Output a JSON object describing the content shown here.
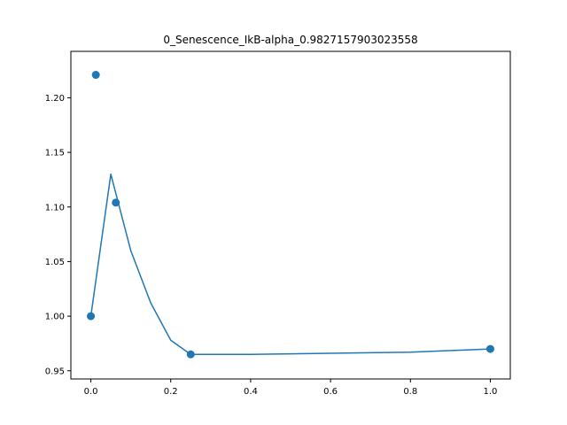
{
  "chart_data": {
    "type": "line",
    "title": "0_Senescence_IkB-alpha_0.9827157903023558",
    "xlabel": "",
    "ylabel": "",
    "xlim": [
      -0.05,
      1.05
    ],
    "ylim": [
      0.9425,
      1.2425
    ],
    "xticks": [
      0.0,
      0.2,
      0.4,
      0.6,
      0.8,
      1.0
    ],
    "xtick_labels": [
      "0.0",
      "0.2",
      "0.4",
      "0.6",
      "0.8",
      "1.0"
    ],
    "yticks": [
      0.95,
      1.0,
      1.05,
      1.1,
      1.15,
      1.2
    ],
    "ytick_labels": [
      "0.95",
      "1.00",
      "1.05",
      "1.10",
      "1.15",
      "1.20"
    ],
    "grid": false,
    "color": "#1f77b4",
    "series": [
      {
        "kind": "scatter",
        "x": [
          0.0,
          0.0125,
          0.0625,
          0.25,
          1.0
        ],
        "y": [
          1.0,
          1.221,
          1.104,
          0.965,
          0.97
        ]
      },
      {
        "kind": "line",
        "x": [
          0.0,
          0.05,
          0.1,
          0.15,
          0.2,
          0.25,
          0.4,
          0.6,
          0.8,
          1.0
        ],
        "y": [
          1.0,
          1.13,
          1.06,
          1.012,
          0.978,
          0.965,
          0.965,
          0.966,
          0.967,
          0.97
        ]
      }
    ]
  }
}
